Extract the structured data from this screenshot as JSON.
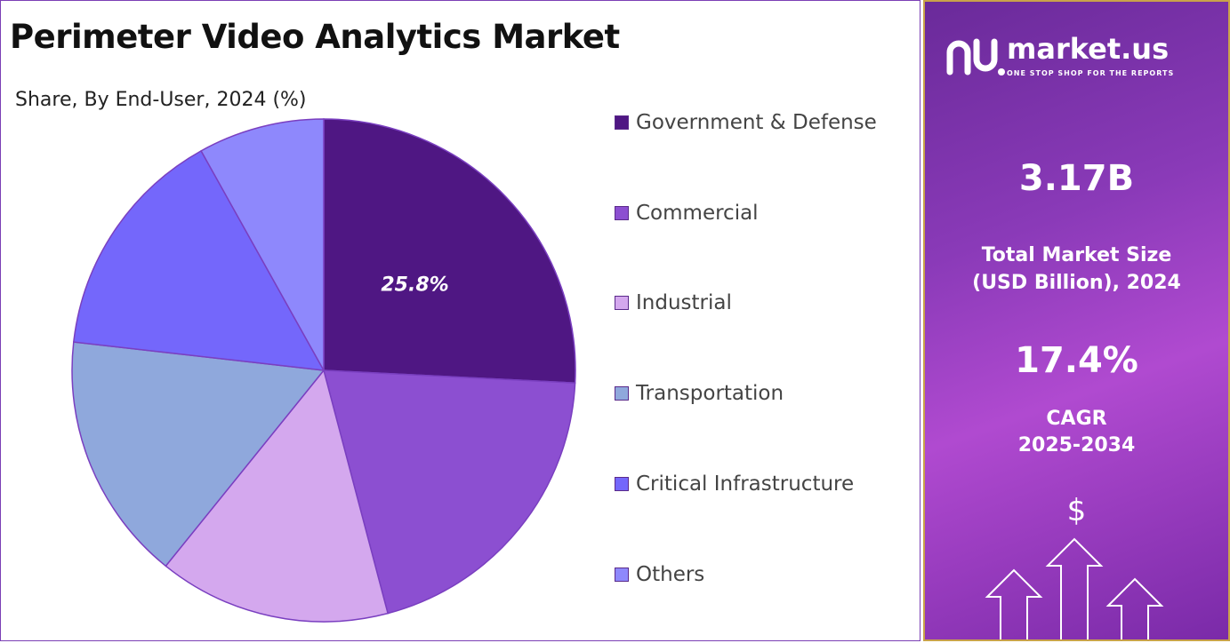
{
  "title": "Perimeter Video Analytics Market",
  "subtitle": "Share, By End-User, 2024 (%)",
  "chart_data": {
    "type": "pie",
    "categories": [
      "Government & Defense",
      "Commercial",
      "Industrial",
      "Transportation",
      "Critical Infrastructure",
      "Others"
    ],
    "values": [
      25.8,
      20.1,
      14.9,
      16.0,
      15.1,
      8.1
    ],
    "colors": [
      "#4f1783",
      "#8c4fd1",
      "#d4a8ee",
      "#8fa8dc",
      "#7467fb",
      "#8e88fc"
    ],
    "data_labels": [
      "25.8%",
      "",
      "",
      "",
      "",
      ""
    ],
    "legend_position": "right"
  },
  "panel": {
    "brand": "market.us",
    "tagline": "ONE STOP SHOP FOR THE REPORTS",
    "market_size": "3.17B",
    "market_size_label_1": "Total Market Size",
    "market_size_label_2": "(USD Billion), 2024",
    "cagr": "17.4%",
    "cagr_label_1": "CAGR",
    "cagr_label_2": "2025-2034",
    "dollar": "$"
  }
}
